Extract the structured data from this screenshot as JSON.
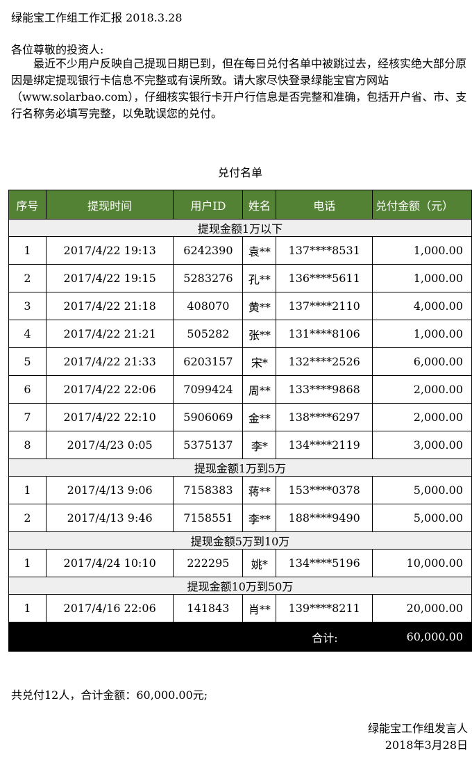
{
  "title": "绿能宝工作组工作汇报 2018.3.28",
  "greeting": "各位尊敬的投资人:",
  "body": "最近不少用户反映自己提现日期已到，但在每日兑付名单中被跳过去，经核实绝大部分原因是绑定提现银行卡信息不完整或有误所致。请大家尽快登录绿能宝官方网站（www.solarbao.com），仔细核实银行卡开户行信息是否完整和准确，包括开户省、市、支行名称务必填写完整，以免耽误您的兑付。",
  "table_title": "兑付名单",
  "columns": [
    "序号",
    "提现时间",
    "用户ID",
    "姓名",
    "电话",
    "兑付金额（元）"
  ],
  "groups": [
    {
      "label": "提现金额1万以下",
      "rows": [
        [
          "1",
          "2017/4/22 19:13",
          "6242390",
          "袁**",
          "137****8531",
          "1,000.00"
        ],
        [
          "2",
          "2017/4/22 19:15",
          "5283276",
          "孔**",
          "136****5611",
          "1,000.00"
        ],
        [
          "3",
          "2017/4/22 21:18",
          "408070",
          "黄**",
          "137****2110",
          "4,000.00"
        ],
        [
          "4",
          "2017/4/22 21:21",
          "505282",
          "张**",
          "131****8106",
          "1,000.00"
        ],
        [
          "5",
          "2017/4/22 21:33",
          "6203157",
          "宋*",
          "132****2526",
          "6,000.00"
        ],
        [
          "6",
          "2017/4/22 22:06",
          "7099424",
          "周**",
          "133****9868",
          "2,000.00"
        ],
        [
          "7",
          "2017/4/22 22:10",
          "5906069",
          "金**",
          "138****6297",
          "2,000.00"
        ],
        [
          "8",
          "2017/4/23 0:05",
          "5375137",
          "李*",
          "134****2119",
          "3,000.00"
        ]
      ]
    },
    {
      "label": "提现金额1万到5万",
      "rows": [
        [
          "1",
          "2017/4/13 9:06",
          "7158383",
          "蒋**",
          "153****0378",
          "5,000.00"
        ],
        [
          "2",
          "2017/4/13 9:46",
          "7158551",
          "李**",
          "188****9490",
          "5,000.00"
        ]
      ]
    },
    {
      "label": "提现金额5万到10万",
      "rows": [
        [
          "1",
          "2017/4/24 10:10",
          "222295",
          "姚*",
          "134****5196",
          "10,000.00"
        ]
      ]
    },
    {
      "label": "提现金额10万到50万",
      "rows": [
        [
          "1",
          "2017/4/16 22:06",
          "141843",
          "肖**",
          "139****8211",
          "20,000.00"
        ]
      ]
    }
  ],
  "total_label": "合计:",
  "total_value": "60,000.00",
  "summary": "共兑付12人，合计金额：60,000.00元;",
  "signature": "绿能宝工作组发言人",
  "date": "2018年3月28日",
  "colors": {
    "header_bg": "#548235",
    "group_bg": "#efefef",
    "total_bg": "#000000"
  }
}
